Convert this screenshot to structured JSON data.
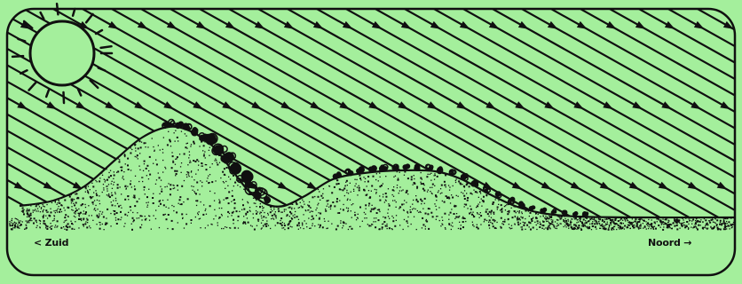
{
  "labels": {
    "south": "< Zuid",
    "north": "Noord →"
  },
  "colors": {
    "background": "#a4ef9c",
    "ink": "#101010"
  },
  "icons": {
    "sun": "sun-icon"
  }
}
